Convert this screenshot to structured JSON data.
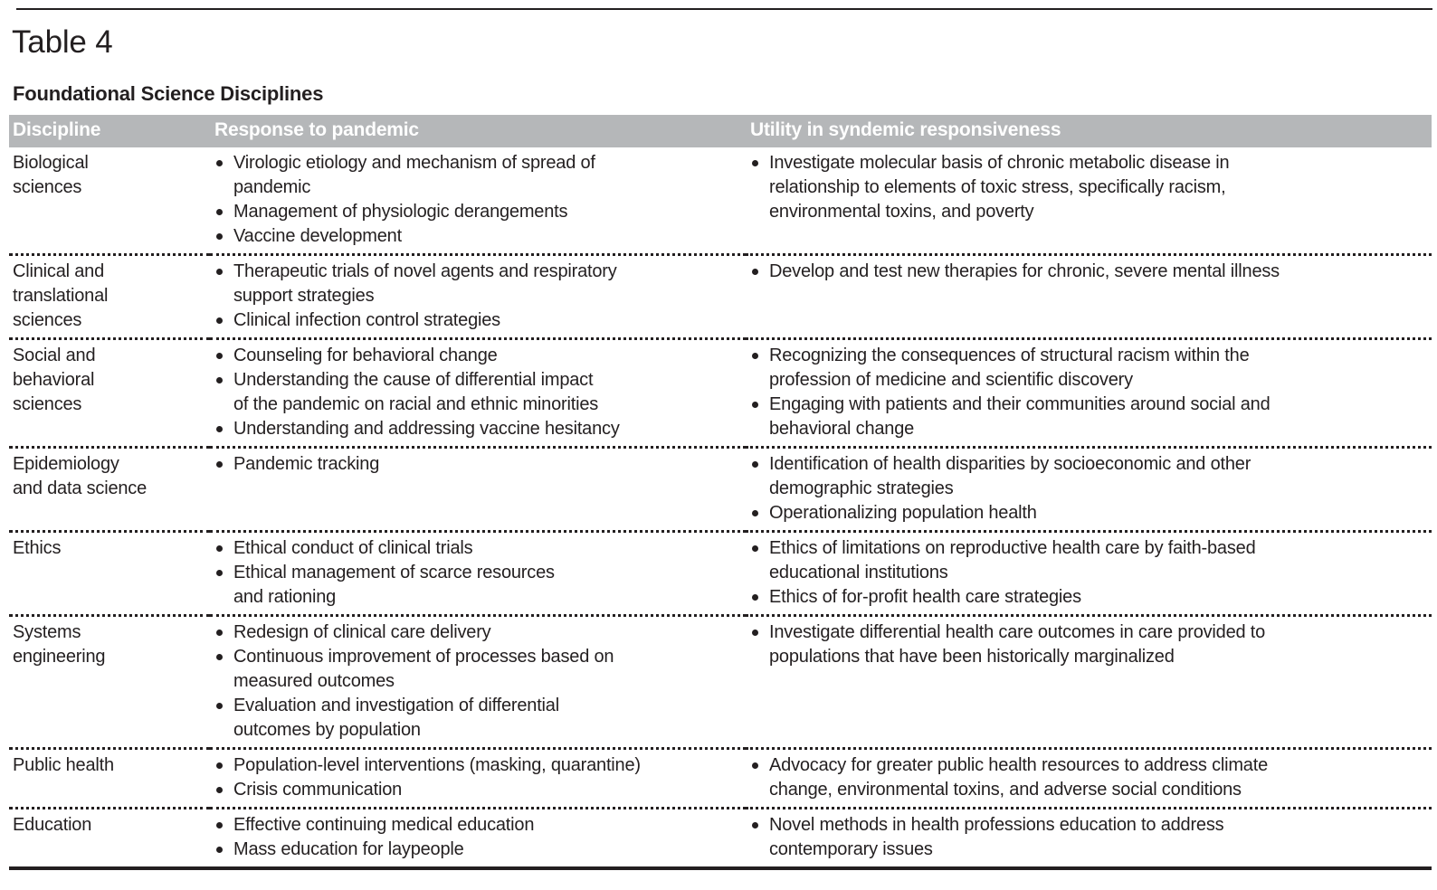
{
  "header": {
    "table_label": "Table 4",
    "table_title": "Foundational Science Disciplines"
  },
  "table": {
    "columns": [
      "Discipline",
      "Response to pandemic",
      "Utility in syndemic responsiveness"
    ],
    "rows": [
      {
        "discipline": "Biological\nsciences",
        "response_to_pandemic": [
          "Virologic etiology and mechanism of spread of\npandemic",
          "Management of physiologic derangements",
          "Vaccine development"
        ],
        "utility_in_syndemic_responsiveness": [
          "Investigate molecular basis of chronic metabolic disease in\nrelationship to elements of toxic stress, specifically racism,\nenvironmental toxins, and poverty"
        ]
      },
      {
        "discipline": "Clinical and\ntranslational\nsciences",
        "response_to_pandemic": [
          "Therapeutic trials of novel agents and respiratory\nsupport strategies",
          "Clinical infection control strategies"
        ],
        "utility_in_syndemic_responsiveness": [
          "Develop and test new therapies for chronic, severe mental illness"
        ]
      },
      {
        "discipline": "Social and\nbehavioral\nsciences",
        "response_to_pandemic": [
          "Counseling for behavioral change",
          "Understanding the cause of differential impact\nof the pandemic on racial and ethnic minorities",
          "Understanding and addressing vaccine hesitancy"
        ],
        "utility_in_syndemic_responsiveness": [
          "Recognizing the consequences of structural racism within the\nprofession of medicine and scientific discovery",
          "Engaging with patients and their communities around social and\nbehavioral change"
        ]
      },
      {
        "discipline": "Epidemiology\nand data science",
        "response_to_pandemic": [
          "Pandemic tracking"
        ],
        "utility_in_syndemic_responsiveness": [
          "Identification of health disparities by socioeconomic and other\ndemographic strategies",
          "Operationalizing population health"
        ]
      },
      {
        "discipline": "Ethics",
        "response_to_pandemic": [
          "Ethical conduct of clinical trials",
          "Ethical management of scarce resources\nand rationing"
        ],
        "utility_in_syndemic_responsiveness": [
          "Ethics of limitations on reproductive health care by faith-based\neducational institutions",
          "Ethics of for-profit health care strategies"
        ]
      },
      {
        "discipline": "Systems\nengineering",
        "response_to_pandemic": [
          "Redesign of clinical care delivery",
          "Continuous improvement of processes based on\nmeasured outcomes",
          "Evaluation and investigation of differential\noutcomes by population"
        ],
        "utility_in_syndemic_responsiveness": [
          "Investigate differential health care outcomes in care provided to\npopulations that have been historically marginalized"
        ]
      },
      {
        "discipline": "Public health",
        "response_to_pandemic": [
          "Population-level interventions (masking, quarantine)",
          "Crisis communication"
        ],
        "utility_in_syndemic_responsiveness": [
          "Advocacy for greater public health resources to address climate\nchange, environmental toxins, and adverse social conditions"
        ]
      },
      {
        "discipline": "Education",
        "response_to_pandemic": [
          "Effective continuing medical education",
          "Mass education for laypeople"
        ],
        "utility_in_syndemic_responsiveness": [
          "Novel methods in health professions education to address\ncontemporary issues"
        ]
      }
    ]
  },
  "colors": {
    "header_bg": "#b5b7b9",
    "header_text": "#ffffff",
    "body_text": "#231f20",
    "rule": "#231f20"
  }
}
